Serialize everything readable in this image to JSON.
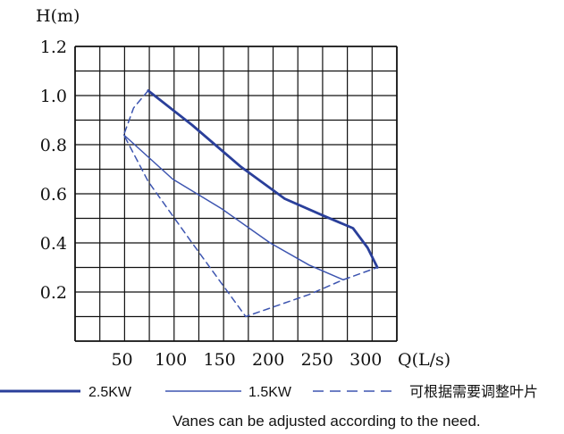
{
  "chart_data": {
    "type": "line",
    "y_axis_label": "H(m)",
    "x_axis_label": "Q(L/s)",
    "xlim": [
      0,
      330
    ],
    "ylim": [
      0,
      1.2
    ],
    "x_ticks": [
      "50",
      "100",
      "150",
      "200",
      "250",
      "300"
    ],
    "y_ticks": [
      "1.2",
      "1.0",
      "0.8",
      "0.6",
      "0.4",
      "0.2"
    ],
    "grid": true,
    "series": [
      {
        "name": "2.5KW",
        "style": "solid-thick",
        "color": "#2a3f9a",
        "points": [
          [
            75,
            1.02
          ],
          [
            120,
            0.88
          ],
          [
            170,
            0.71
          ],
          [
            215,
            0.58
          ],
          [
            255,
            0.51
          ],
          [
            285,
            0.46
          ],
          [
            300,
            0.38
          ],
          [
            310,
            0.3
          ]
        ]
      },
      {
        "name": "1.5KW",
        "style": "solid-thin",
        "color": "#3d55b0",
        "points": [
          [
            50,
            0.84
          ],
          [
            100,
            0.66
          ],
          [
            150,
            0.54
          ],
          [
            200,
            0.4
          ],
          [
            240,
            0.31
          ],
          [
            275,
            0.25
          ]
        ]
      },
      {
        "name": "可根据需要调整叶片",
        "style": "dashed",
        "color": "#3d55b0",
        "points": [
          [
            75,
            1.02
          ],
          [
            60,
            0.95
          ],
          [
            50,
            0.84
          ],
          [
            75,
            0.65
          ],
          [
            120,
            0.4
          ],
          [
            175,
            0.1
          ],
          [
            240,
            0.19
          ],
          [
            275,
            0.25
          ],
          [
            310,
            0.3
          ]
        ]
      }
    ]
  },
  "note": "Vanes can be adjusted according to the need."
}
